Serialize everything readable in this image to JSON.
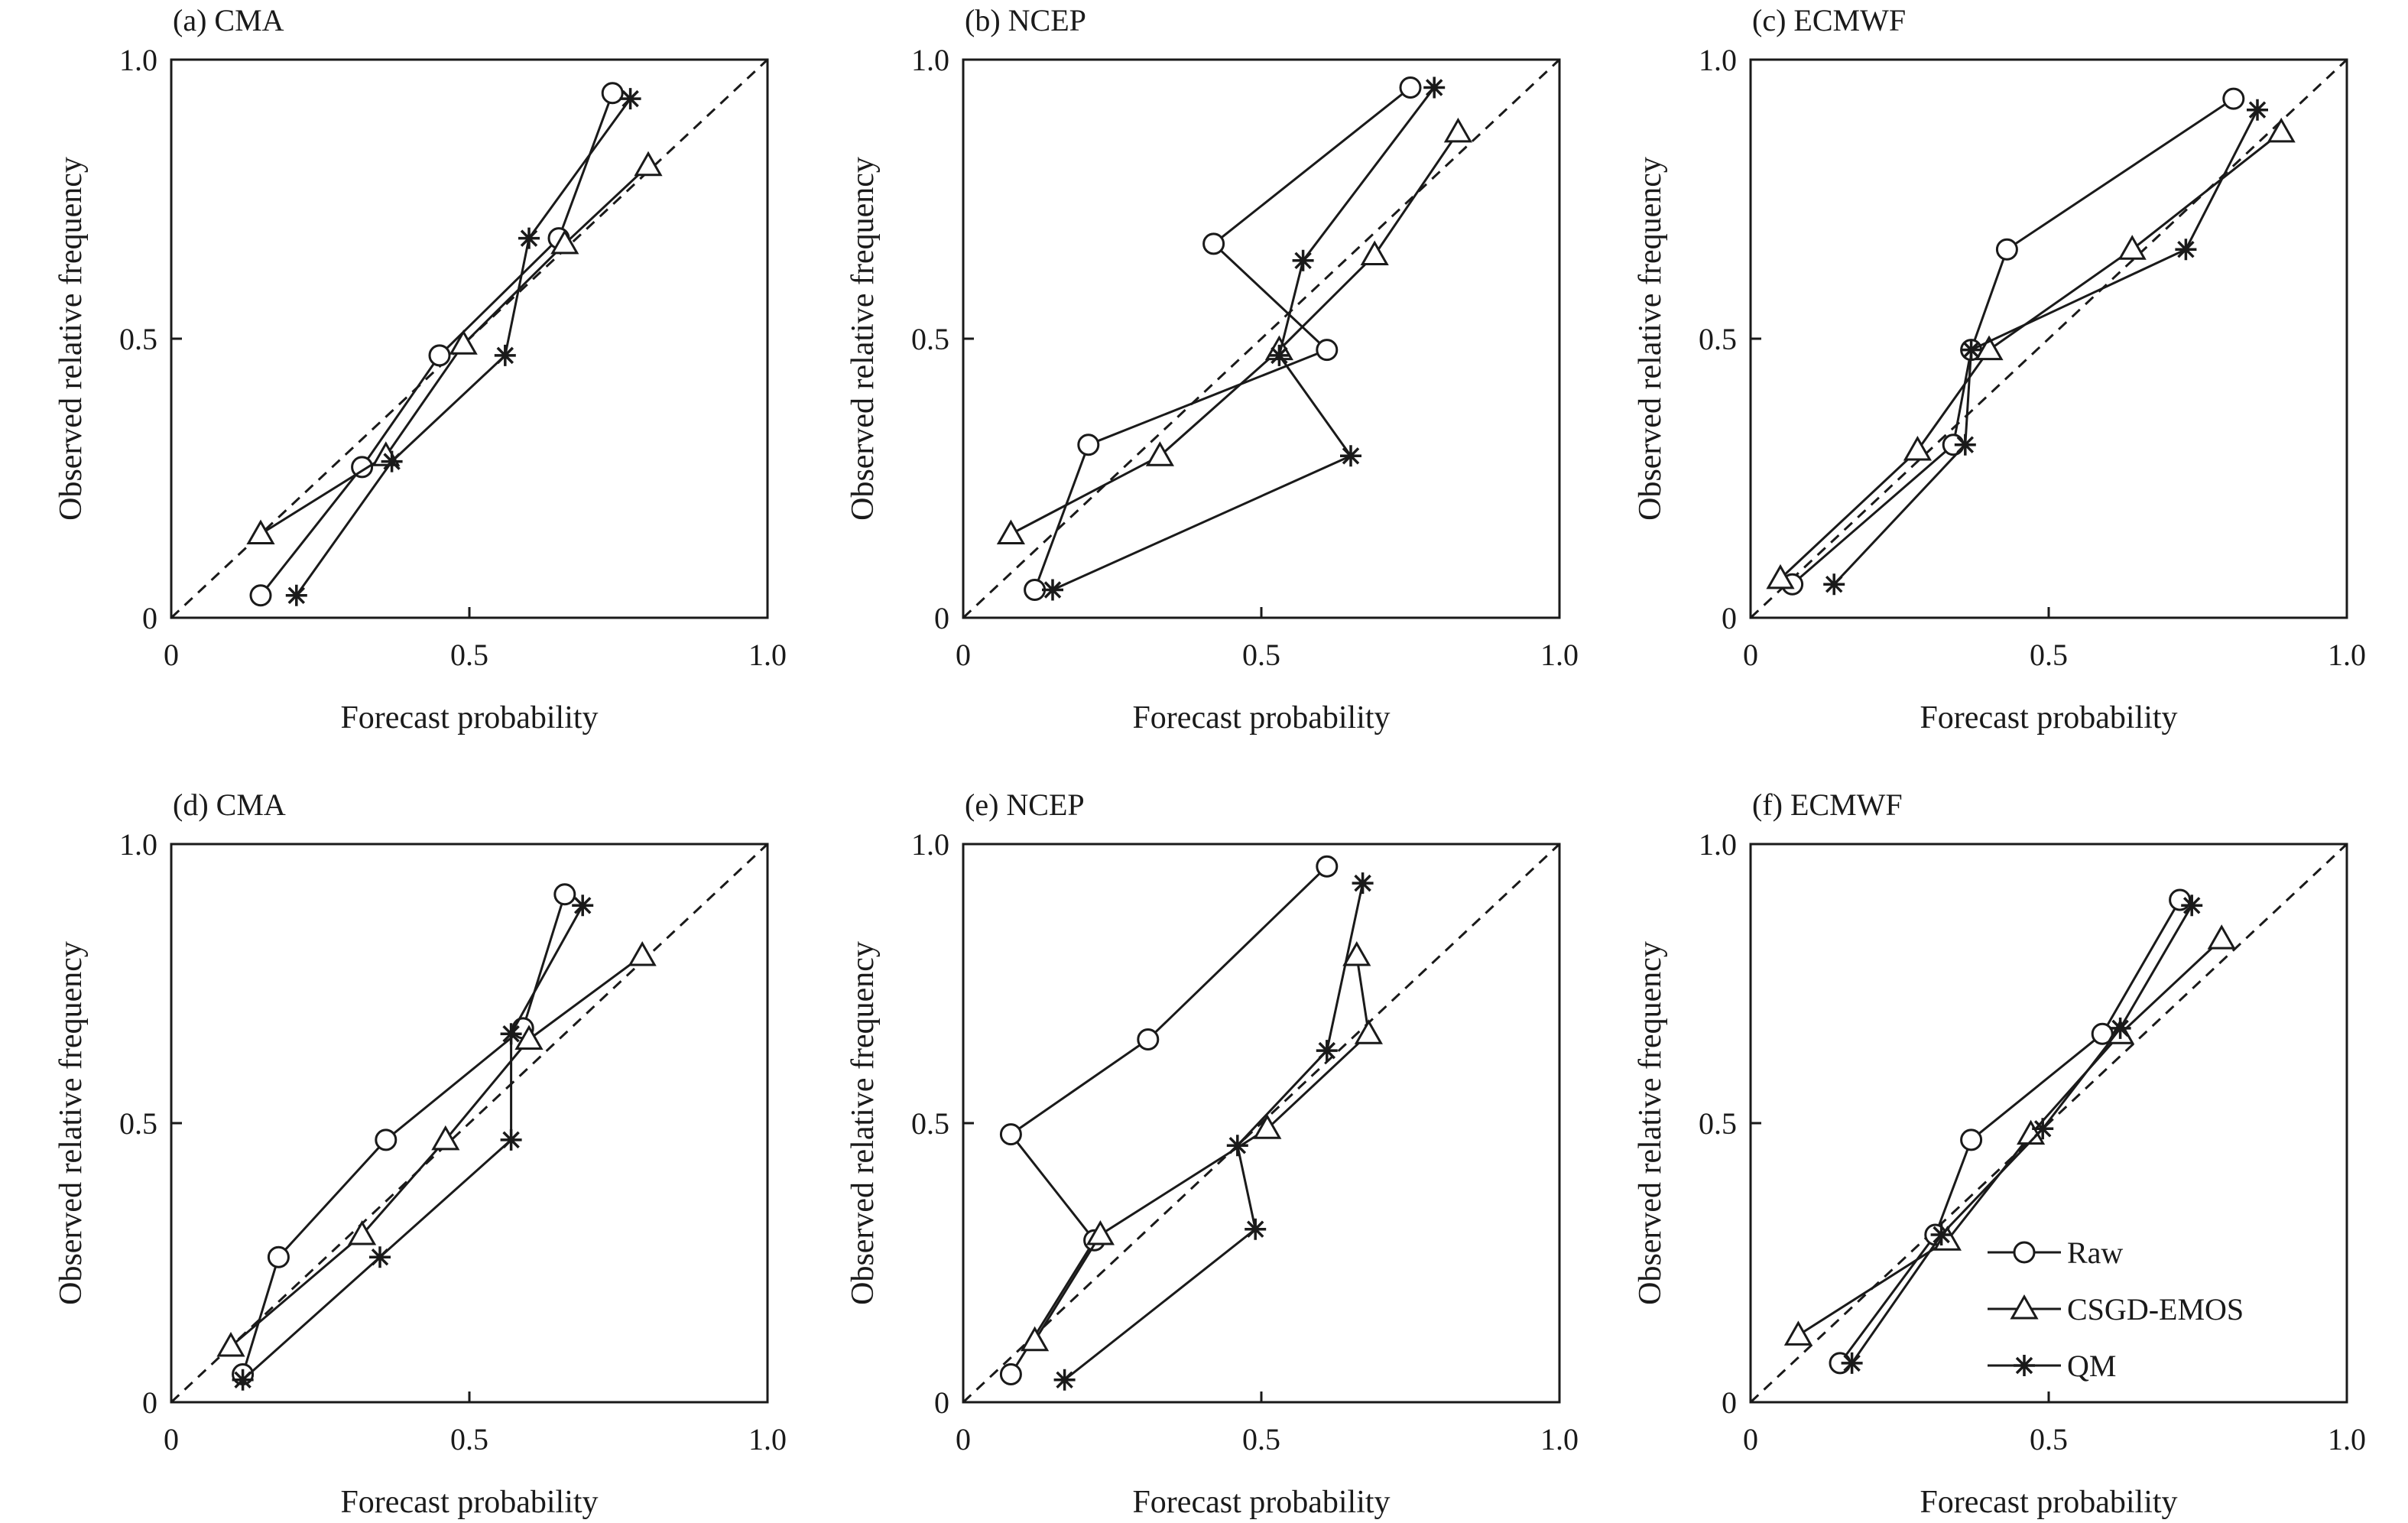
{
  "chart_data": [
    {
      "type": "line",
      "title": "(a) CMA",
      "xlabel": "Forecast probability",
      "ylabel": "Observed relative frequency",
      "xlim": [
        0,
        1
      ],
      "ylim": [
        0,
        1
      ],
      "xticks": [
        "0",
        "0.5",
        "1.0"
      ],
      "yticks": [
        "0",
        "0.5",
        "1.0"
      ],
      "reference_line": "diagonal",
      "series": [
        {
          "name": "Raw",
          "marker": "circle",
          "x": [
            0.15,
            0.32,
            0.45,
            0.65,
            0.74
          ],
          "y": [
            0.04,
            0.27,
            0.47,
            0.68,
            0.94
          ]
        },
        {
          "name": "CSGD-EMOS",
          "marker": "triangle",
          "x": [
            0.15,
            0.36,
            0.49,
            0.66,
            0.8
          ],
          "y": [
            0.15,
            0.29,
            0.49,
            0.67,
            0.81
          ]
        },
        {
          "name": "QM",
          "marker": "star",
          "x": [
            0.21,
            0.37,
            0.56,
            0.6,
            0.77
          ],
          "y": [
            0.04,
            0.28,
            0.47,
            0.68,
            0.93
          ]
        }
      ]
    },
    {
      "type": "line",
      "title": "(b) NCEP",
      "xlabel": "Forecast probability",
      "ylabel": "Observed relative frequency",
      "xlim": [
        0,
        1
      ],
      "ylim": [
        0,
        1
      ],
      "xticks": [
        "0",
        "0.5",
        "1.0"
      ],
      "yticks": [
        "0",
        "0.5",
        "1.0"
      ],
      "reference_line": "diagonal",
      "series": [
        {
          "name": "Raw",
          "marker": "circle",
          "x": [
            0.12,
            0.21,
            0.61,
            0.42,
            0.75
          ],
          "y": [
            0.05,
            0.31,
            0.48,
            0.67,
            0.95
          ]
        },
        {
          "name": "CSGD-EMOS",
          "marker": "triangle",
          "x": [
            0.08,
            0.33,
            0.53,
            0.69,
            0.83
          ],
          "y": [
            0.15,
            0.29,
            0.48,
            0.65,
            0.87
          ]
        },
        {
          "name": "QM",
          "marker": "star",
          "x": [
            0.15,
            0.65,
            0.53,
            0.57,
            0.79
          ],
          "y": [
            0.05,
            0.29,
            0.47,
            0.64,
            0.95
          ]
        }
      ]
    },
    {
      "type": "line",
      "title": "(c) ECMWF",
      "xlabel": "Forecast probability",
      "ylabel": "Observed relative frequency",
      "xlim": [
        0,
        1
      ],
      "ylim": [
        0,
        1
      ],
      "xticks": [
        "0",
        "0.5",
        "1.0"
      ],
      "yticks": [
        "0",
        "0.5",
        "1.0"
      ],
      "reference_line": "diagonal",
      "series": [
        {
          "name": "Raw",
          "marker": "circle",
          "x": [
            0.07,
            0.34,
            0.37,
            0.43,
            0.81
          ],
          "y": [
            0.06,
            0.31,
            0.48,
            0.66,
            0.93
          ]
        },
        {
          "name": "CSGD-EMOS",
          "marker": "triangle",
          "x": [
            0.05,
            0.28,
            0.4,
            0.64,
            0.89
          ],
          "y": [
            0.07,
            0.3,
            0.48,
            0.66,
            0.87
          ]
        },
        {
          "name": "QM",
          "marker": "star",
          "x": [
            0.14,
            0.36,
            0.37,
            0.73,
            0.85
          ],
          "y": [
            0.06,
            0.31,
            0.48,
            0.66,
            0.91
          ]
        }
      ]
    },
    {
      "type": "line",
      "title": "(d) CMA",
      "xlabel": "Forecast probability",
      "ylabel": "Observed relative frequency",
      "xlim": [
        0,
        1
      ],
      "ylim": [
        0,
        1
      ],
      "xticks": [
        "0",
        "0.5",
        "1.0"
      ],
      "yticks": [
        "0",
        "0.5",
        "1.0"
      ],
      "reference_line": "diagonal",
      "series": [
        {
          "name": "Raw",
          "marker": "circle",
          "x": [
            0.12,
            0.18,
            0.36,
            0.59,
            0.66
          ],
          "y": [
            0.05,
            0.26,
            0.47,
            0.67,
            0.91
          ]
        },
        {
          "name": "CSGD-EMOS",
          "marker": "triangle",
          "x": [
            0.1,
            0.32,
            0.46,
            0.6,
            0.79
          ],
          "y": [
            0.1,
            0.3,
            0.47,
            0.65,
            0.8
          ]
        },
        {
          "name": "QM",
          "marker": "star",
          "x": [
            0.12,
            0.35,
            0.57,
            0.57,
            0.69
          ],
          "y": [
            0.04,
            0.26,
            0.47,
            0.66,
            0.89
          ]
        }
      ]
    },
    {
      "type": "line",
      "title": "(e) NCEP",
      "xlabel": "Forecast probability",
      "ylabel": "Observed relative frequency",
      "xlim": [
        0,
        1
      ],
      "ylim": [
        0,
        1
      ],
      "xticks": [
        "0",
        "0.5",
        "1.0"
      ],
      "yticks": [
        "0",
        "0.5",
        "1.0"
      ],
      "reference_line": "diagonal",
      "series": [
        {
          "name": "Raw",
          "marker": "circle",
          "x": [
            0.08,
            0.22,
            0.08,
            0.31,
            0.61
          ],
          "y": [
            0.05,
            0.29,
            0.48,
            0.65,
            0.96
          ]
        },
        {
          "name": "CSGD-EMOS",
          "marker": "triangle",
          "x": [
            0.12,
            0.23,
            0.51,
            0.68,
            0.66
          ],
          "y": [
            0.11,
            0.3,
            0.49,
            0.66,
            0.8
          ]
        },
        {
          "name": "QM",
          "marker": "star",
          "x": [
            0.17,
            0.49,
            0.46,
            0.61,
            0.67
          ],
          "y": [
            0.04,
            0.31,
            0.46,
            0.63,
            0.93
          ]
        }
      ]
    },
    {
      "type": "line",
      "title": "(f) ECMWF",
      "xlabel": "Forecast probability",
      "ylabel": "Observed relative frequency",
      "xlim": [
        0,
        1
      ],
      "ylim": [
        0,
        1
      ],
      "xticks": [
        "0",
        "0.5",
        "1.0"
      ],
      "yticks": [
        "0",
        "0.5",
        "1.0"
      ],
      "reference_line": "diagonal",
      "legend": {
        "placement": "bottom-right",
        "entries": [
          "Raw",
          "CSGD-EMOS",
          "QM"
        ]
      },
      "series": [
        {
          "name": "Raw",
          "marker": "circle",
          "x": [
            0.15,
            0.31,
            0.37,
            0.59,
            0.72
          ],
          "y": [
            0.07,
            0.3,
            0.47,
            0.66,
            0.9
          ]
        },
        {
          "name": "CSGD-EMOS",
          "marker": "triangle",
          "x": [
            0.08,
            0.33,
            0.47,
            0.62,
            0.79
          ],
          "y": [
            0.12,
            0.29,
            0.48,
            0.66,
            0.83
          ]
        },
        {
          "name": "QM",
          "marker": "star",
          "x": [
            0.17,
            0.32,
            0.49,
            0.62,
            0.74
          ],
          "y": [
            0.07,
            0.3,
            0.49,
            0.67,
            0.89
          ]
        }
      ]
    }
  ]
}
